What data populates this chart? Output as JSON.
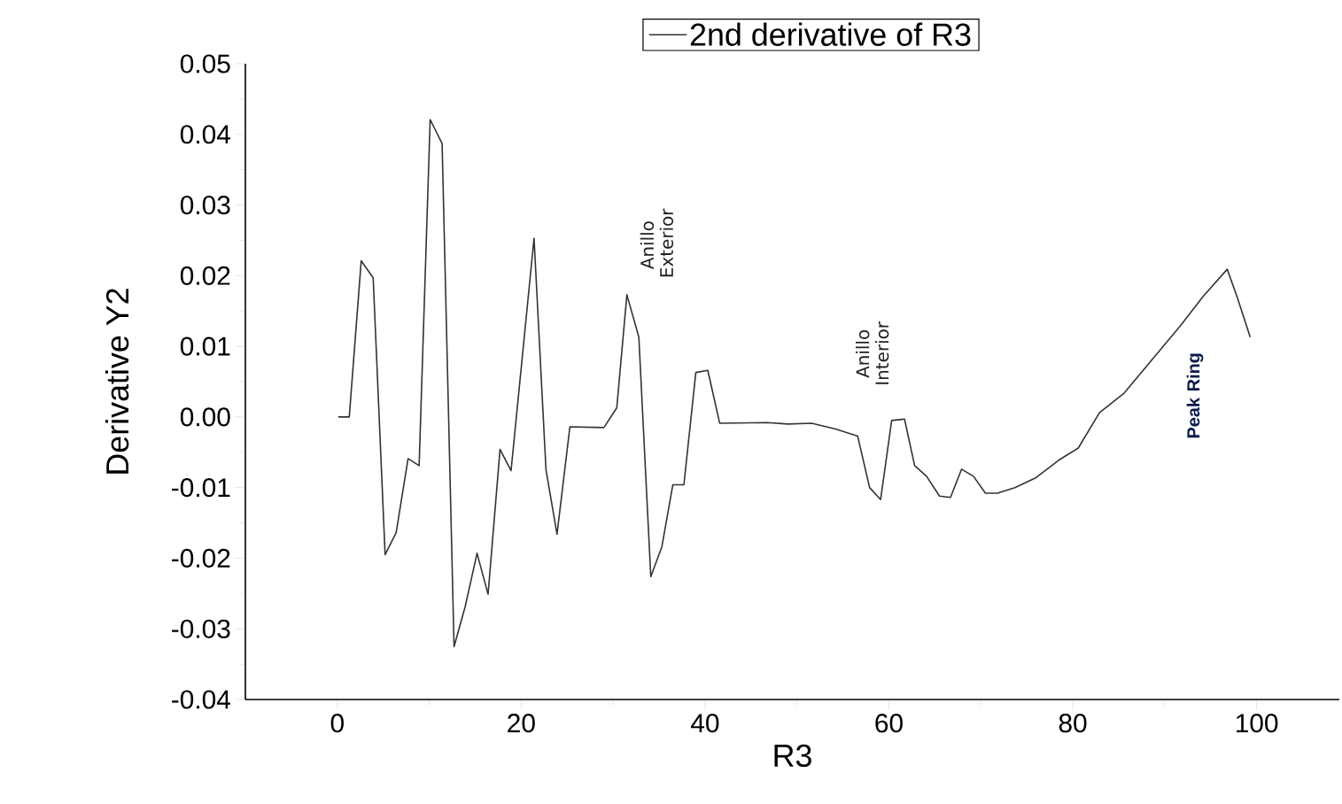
{
  "chart_data": {
    "type": "line",
    "xlabel": "R3",
    "ylabel": "Derivative Y2",
    "x": [
      0.1,
      1.3,
      2.6,
      3.9,
      5.2,
      6.4,
      7.7,
      8.9,
      10.1,
      11.4,
      12.7,
      13.9,
      15.2,
      16.4,
      17.7,
      18.9,
      21.4,
      22.7,
      23.9,
      25.3,
      29.0,
      30.4,
      31.5,
      32.8,
      34.1,
      35.3,
      36.5,
      37.7,
      39.0,
      40.3,
      41.6,
      46.8,
      49.0,
      51.6,
      54.2,
      56.6,
      57.9,
      59.1,
      60.3,
      61.7,
      62.8,
      64.1,
      65.5,
      66.7,
      67.9,
      69.2,
      70.5,
      71.8,
      73.7,
      76.0,
      78.5,
      80.6,
      82.9,
      85.6,
      88.5,
      91.7,
      94.2,
      96.8,
      97.9,
      99.3
    ],
    "series": [
      {
        "name": "2nd derivative of R3",
        "color": "#333333",
        "values": [
          0.0,
          0.0,
          0.0221,
          0.0197,
          -0.0195,
          -0.0164,
          -0.0059,
          -0.0069,
          0.0421,
          0.0387,
          -0.0325,
          -0.0269,
          -0.0193,
          -0.0251,
          -0.0046,
          -0.0076,
          0.0253,
          -0.0075,
          -0.0166,
          -0.0014,
          -0.0015,
          0.0013,
          0.0173,
          0.0113,
          -0.0226,
          -0.0184,
          -0.0096,
          -0.0096,
          0.0063,
          0.0066,
          -0.0009,
          -0.0008,
          -0.001,
          -0.0009,
          -0.0017,
          -0.0027,
          -0.01,
          -0.0117,
          -0.0005,
          -0.0003,
          -0.0069,
          -0.0084,
          -0.0112,
          -0.0114,
          -0.0074,
          -0.0084,
          -0.0108,
          -0.0108,
          -0.01,
          -0.0086,
          -0.0061,
          -0.0044,
          0.0006,
          0.0034,
          0.0079,
          0.0129,
          0.0171,
          0.0209,
          0.0169,
          0.0113
        ]
      }
    ],
    "xlim": [
      -10,
      109
    ],
    "ylim": [
      -0.04,
      0.05
    ],
    "xticks": [
      0,
      20,
      40,
      60,
      80,
      100
    ],
    "yticks": [
      0.05,
      0.04,
      0.03,
      0.02,
      0.01,
      {
        "value": 0,
        "label": "0.00"
      },
      -0.01,
      -0.02,
      -0.03,
      -0.04
    ],
    "annotations": [
      "Anillo Exterior",
      "Anillo Interior",
      "Peak Ring"
    ],
    "legend": "top",
    "grid": false,
    "marker": "none",
    "line_style": "solid"
  }
}
